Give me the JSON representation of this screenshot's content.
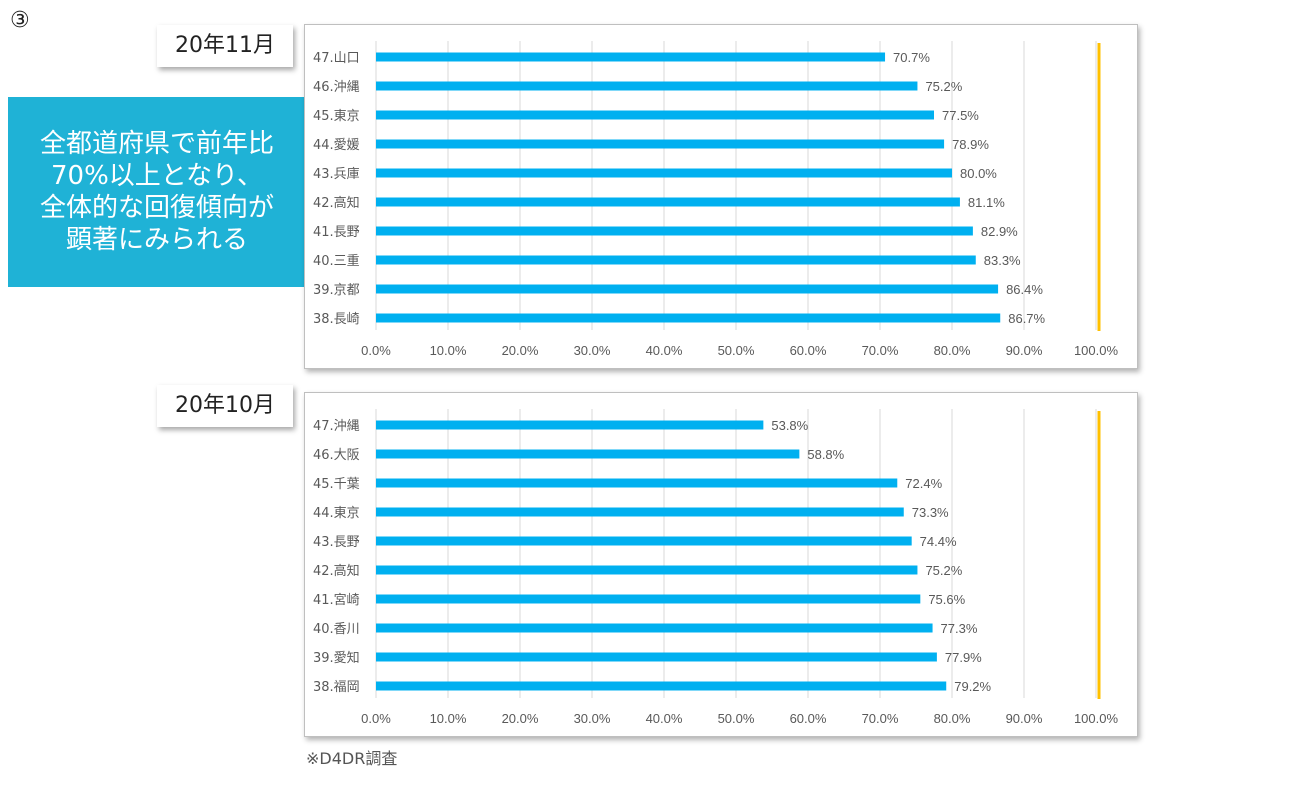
{
  "slide_number": "③",
  "callout": {
    "text": "全都道府県で前年比\n70%以上となり、\n全体的な回復傾向が\n顕著にみられる"
  },
  "source_note": "※D4DR調査",
  "colors": {
    "bar": "#00b0f0",
    "reference_line": "#ffc000",
    "gridline": "#d9d9d9",
    "callout_bg": "#1fb2d6"
  },
  "chart_data": [
    {
      "type": "bar",
      "orientation": "horizontal",
      "period_label": "20年11月",
      "categories": [
        "47.山口",
        "46.沖縄",
        "45.東京",
        "44.愛媛",
        "43.兵庫",
        "42.高知",
        "41.長野",
        "40.三重",
        "39.京都",
        "38.長崎"
      ],
      "values": [
        70.7,
        75.2,
        77.5,
        78.9,
        80.0,
        81.1,
        82.9,
        83.3,
        86.4,
        86.7
      ],
      "data_labels": [
        "70.7%",
        "75.2%",
        "77.5%",
        "78.9%",
        "80.0%",
        "81.1%",
        "82.9%",
        "83.3%",
        "86.4%",
        "86.7%"
      ],
      "x_ticks": [
        "0.0%",
        "10.0%",
        "20.0%",
        "30.0%",
        "40.0%",
        "50.0%",
        "60.0%",
        "70.0%",
        "80.0%",
        "90.0%",
        "100.0%"
      ],
      "xlim": [
        0,
        100
      ],
      "reference_line": 100,
      "grid": true
    },
    {
      "type": "bar",
      "orientation": "horizontal",
      "period_label": "20年10月",
      "categories": [
        "47.沖縄",
        "46.大阪",
        "45.千葉",
        "44.東京",
        "43.長野",
        "42.高知",
        "41.宮崎",
        "40.香川",
        "39.愛知",
        "38.福岡"
      ],
      "values": [
        53.8,
        58.8,
        72.4,
        73.3,
        74.4,
        75.2,
        75.6,
        77.3,
        77.9,
        79.2
      ],
      "data_labels": [
        "53.8%",
        "58.8%",
        "72.4%",
        "73.3%",
        "74.4%",
        "75.2%",
        "75.6%",
        "77.3%",
        "77.9%",
        "79.2%"
      ],
      "x_ticks": [
        "0.0%",
        "10.0%",
        "20.0%",
        "30.0%",
        "40.0%",
        "50.0%",
        "60.0%",
        "70.0%",
        "80.0%",
        "90.0%",
        "100.0%"
      ],
      "xlim": [
        0,
        100
      ],
      "reference_line": 100,
      "grid": true
    }
  ]
}
